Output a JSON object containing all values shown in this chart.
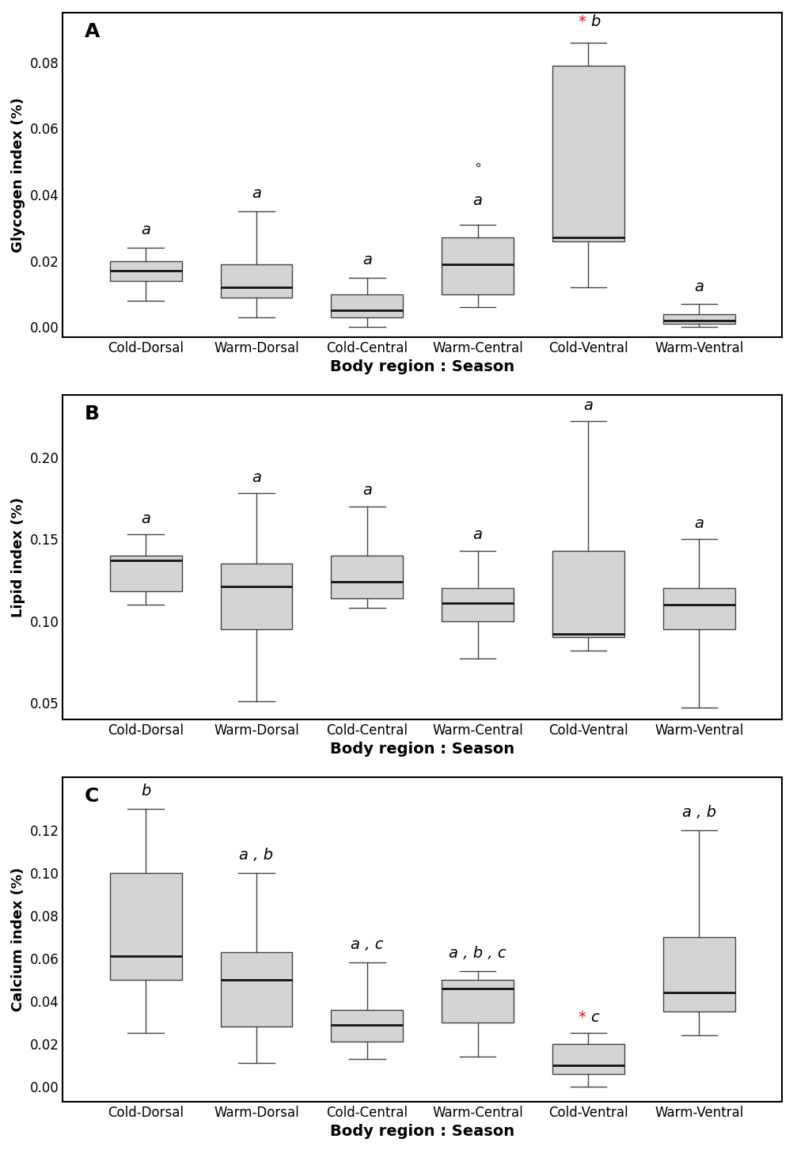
{
  "categories": [
    "Cold-Dorsal",
    "Warm-Dorsal",
    "Cold-Central",
    "Warm-Central",
    "Cold-Ventral",
    "Warm-Ventral"
  ],
  "panel_A": {
    "label": "A",
    "ylabel": "Glycogen index (%)",
    "ylim": [
      -0.003,
      0.095
    ],
    "yticks": [
      0.0,
      0.02,
      0.04,
      0.06,
      0.08
    ],
    "boxes": [
      {
        "whislo": 0.008,
        "q1": 0.014,
        "med": 0.017,
        "q3": 0.02,
        "whishi": 0.024
      },
      {
        "whislo": 0.003,
        "q1": 0.009,
        "med": 0.012,
        "q3": 0.019,
        "whishi": 0.035
      },
      {
        "whislo": 0.0,
        "q1": 0.003,
        "med": 0.005,
        "q3": 0.01,
        "whishi": 0.015
      },
      {
        "whislo": 0.006,
        "q1": 0.01,
        "med": 0.019,
        "q3": 0.027,
        "whishi": 0.031
      },
      {
        "whislo": 0.012,
        "q1": 0.026,
        "med": 0.027,
        "q3": 0.079,
        "whishi": 0.086
      },
      {
        "whislo": 0.0,
        "q1": 0.001,
        "med": 0.002,
        "q3": 0.004,
        "whishi": 0.007
      }
    ],
    "fliers": [
      null,
      null,
      null,
      [
        0.049
      ],
      null,
      null
    ],
    "sig_labels": [
      "a",
      "a",
      "a",
      "a",
      "b",
      "a"
    ],
    "sig_has_star": [
      false,
      false,
      false,
      false,
      true,
      false
    ],
    "sig_positions": [
      0.026,
      0.037,
      0.017,
      0.035,
      0.089,
      0.009
    ],
    "sig_yoffset": 0.001
  },
  "panel_B": {
    "label": "B",
    "ylabel": "Lipid index (%)",
    "ylim": [
      0.04,
      0.238
    ],
    "yticks": [
      0.05,
      0.1,
      0.15,
      0.2
    ],
    "boxes": [
      {
        "whislo": 0.11,
        "q1": 0.118,
        "med": 0.137,
        "q3": 0.14,
        "whishi": 0.153
      },
      {
        "whislo": 0.051,
        "q1": 0.095,
        "med": 0.121,
        "q3": 0.135,
        "whishi": 0.178
      },
      {
        "whislo": 0.108,
        "q1": 0.114,
        "med": 0.124,
        "q3": 0.14,
        "whishi": 0.17
      },
      {
        "whislo": 0.077,
        "q1": 0.1,
        "med": 0.111,
        "q3": 0.12,
        "whishi": 0.143
      },
      {
        "whislo": 0.082,
        "q1": 0.09,
        "med": 0.092,
        "q3": 0.143,
        "whishi": 0.222
      },
      {
        "whislo": 0.047,
        "q1": 0.095,
        "med": 0.11,
        "q3": 0.12,
        "whishi": 0.15
      }
    ],
    "fliers": [
      null,
      null,
      null,
      null,
      null,
      null
    ],
    "sig_labels": [
      "a",
      "a",
      "a",
      "a",
      "a",
      "a"
    ],
    "sig_has_star": [
      false,
      false,
      false,
      false,
      false,
      false
    ],
    "sig_positions": [
      0.155,
      0.18,
      0.172,
      0.145,
      0.224,
      0.152
    ],
    "sig_yoffset": 0.003
  },
  "panel_C": {
    "label": "C",
    "ylabel": "Calcium index (%)",
    "ylim": [
      -0.007,
      0.145
    ],
    "yticks": [
      0.0,
      0.02,
      0.04,
      0.06,
      0.08,
      0.1,
      0.12
    ],
    "boxes": [
      {
        "whislo": 0.025,
        "q1": 0.05,
        "med": 0.061,
        "q3": 0.1,
        "whishi": 0.13
      },
      {
        "whislo": 0.011,
        "q1": 0.028,
        "med": 0.05,
        "q3": 0.063,
        "whishi": 0.1
      },
      {
        "whislo": 0.013,
        "q1": 0.021,
        "med": 0.029,
        "q3": 0.036,
        "whishi": 0.058
      },
      {
        "whislo": 0.014,
        "q1": 0.03,
        "med": 0.046,
        "q3": 0.05,
        "whishi": 0.054
      },
      {
        "whislo": 0.0,
        "q1": 0.006,
        "med": 0.01,
        "q3": 0.02,
        "whishi": 0.025
      },
      {
        "whislo": 0.024,
        "q1": 0.035,
        "med": 0.044,
        "q3": 0.07,
        "whishi": 0.12
      }
    ],
    "fliers": [
      null,
      null,
      null,
      null,
      null,
      null
    ],
    "sig_labels": [
      "b",
      "a , b",
      "a , c",
      "a , b , c",
      "c",
      "a , b"
    ],
    "sig_has_star": [
      false,
      false,
      false,
      false,
      true,
      false
    ],
    "sig_positions": [
      0.133,
      0.103,
      0.061,
      0.057,
      0.027,
      0.123
    ],
    "sig_yoffset": 0.002
  },
  "box_facecolor": "#d4d4d4",
  "box_edgecolor": "#444444",
  "median_color": "#111111",
  "whisker_color": "#444444",
  "cap_color": "#444444",
  "flier_color": "#555555",
  "xlabel": "Body region : Season",
  "xlabel_fontsize": 14,
  "ylabel_fontsize": 13,
  "tick_fontsize": 12,
  "sig_fontsize": 14,
  "panel_label_fontsize": 18,
  "box_width": 0.65
}
